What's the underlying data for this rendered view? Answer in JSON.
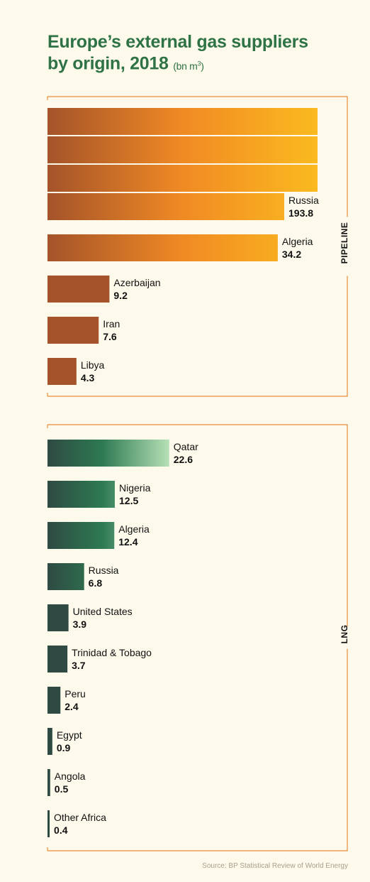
{
  "title": {
    "line1": "Europe’s external gas suppliers",
    "line2": "by origin, 2018",
    "unit_prefix": "(bn m",
    "unit_sup": "3",
    "unit_suffix": ")"
  },
  "source": "Source: BP Statistical Review of World Energy",
  "colors": {
    "pipeline_dark": "#a4532a",
    "pipeline_mid": "#f08a24",
    "pipeline_light": "#fbba1f",
    "lng_dark": "#2f4a43",
    "lng_mid": "#2e7a52",
    "lng_light": "#b6e0b6",
    "frame": "#e98d3c"
  },
  "chart_data": [
    {
      "type": "bar",
      "orientation": "horizontal",
      "group_label": "PIPELINE",
      "unit": "bn m3",
      "categories": [
        "Russia",
        "Algeria",
        "Azerbaijan",
        "Iran",
        "Libya"
      ],
      "values": [
        193.8,
        34.2,
        9.2,
        7.6,
        4.3
      ],
      "value_labels": [
        "193.8",
        "34.2",
        "9.2",
        "7.6",
        "4.3"
      ],
      "note": "Russia bar shown truncated in stacked segments"
    },
    {
      "type": "bar",
      "orientation": "horizontal",
      "group_label": "LNG",
      "unit": "bn m3",
      "categories": [
        "Qatar",
        "Nigeria",
        "Algeria",
        "Russia",
        "United States",
        "Trinidad & Tobago",
        "Peru",
        "Egypt",
        "Angola",
        "Other Africa"
      ],
      "values": [
        22.6,
        12.5,
        12.4,
        6.8,
        3.9,
        3.7,
        2.4,
        0.9,
        0.5,
        0.4
      ],
      "value_labels": [
        "22.6",
        "12.5",
        "12.4",
        "6.8",
        "3.9",
        "3.7",
        "2.4",
        "0.9",
        "0.5",
        "0.4"
      ]
    }
  ]
}
